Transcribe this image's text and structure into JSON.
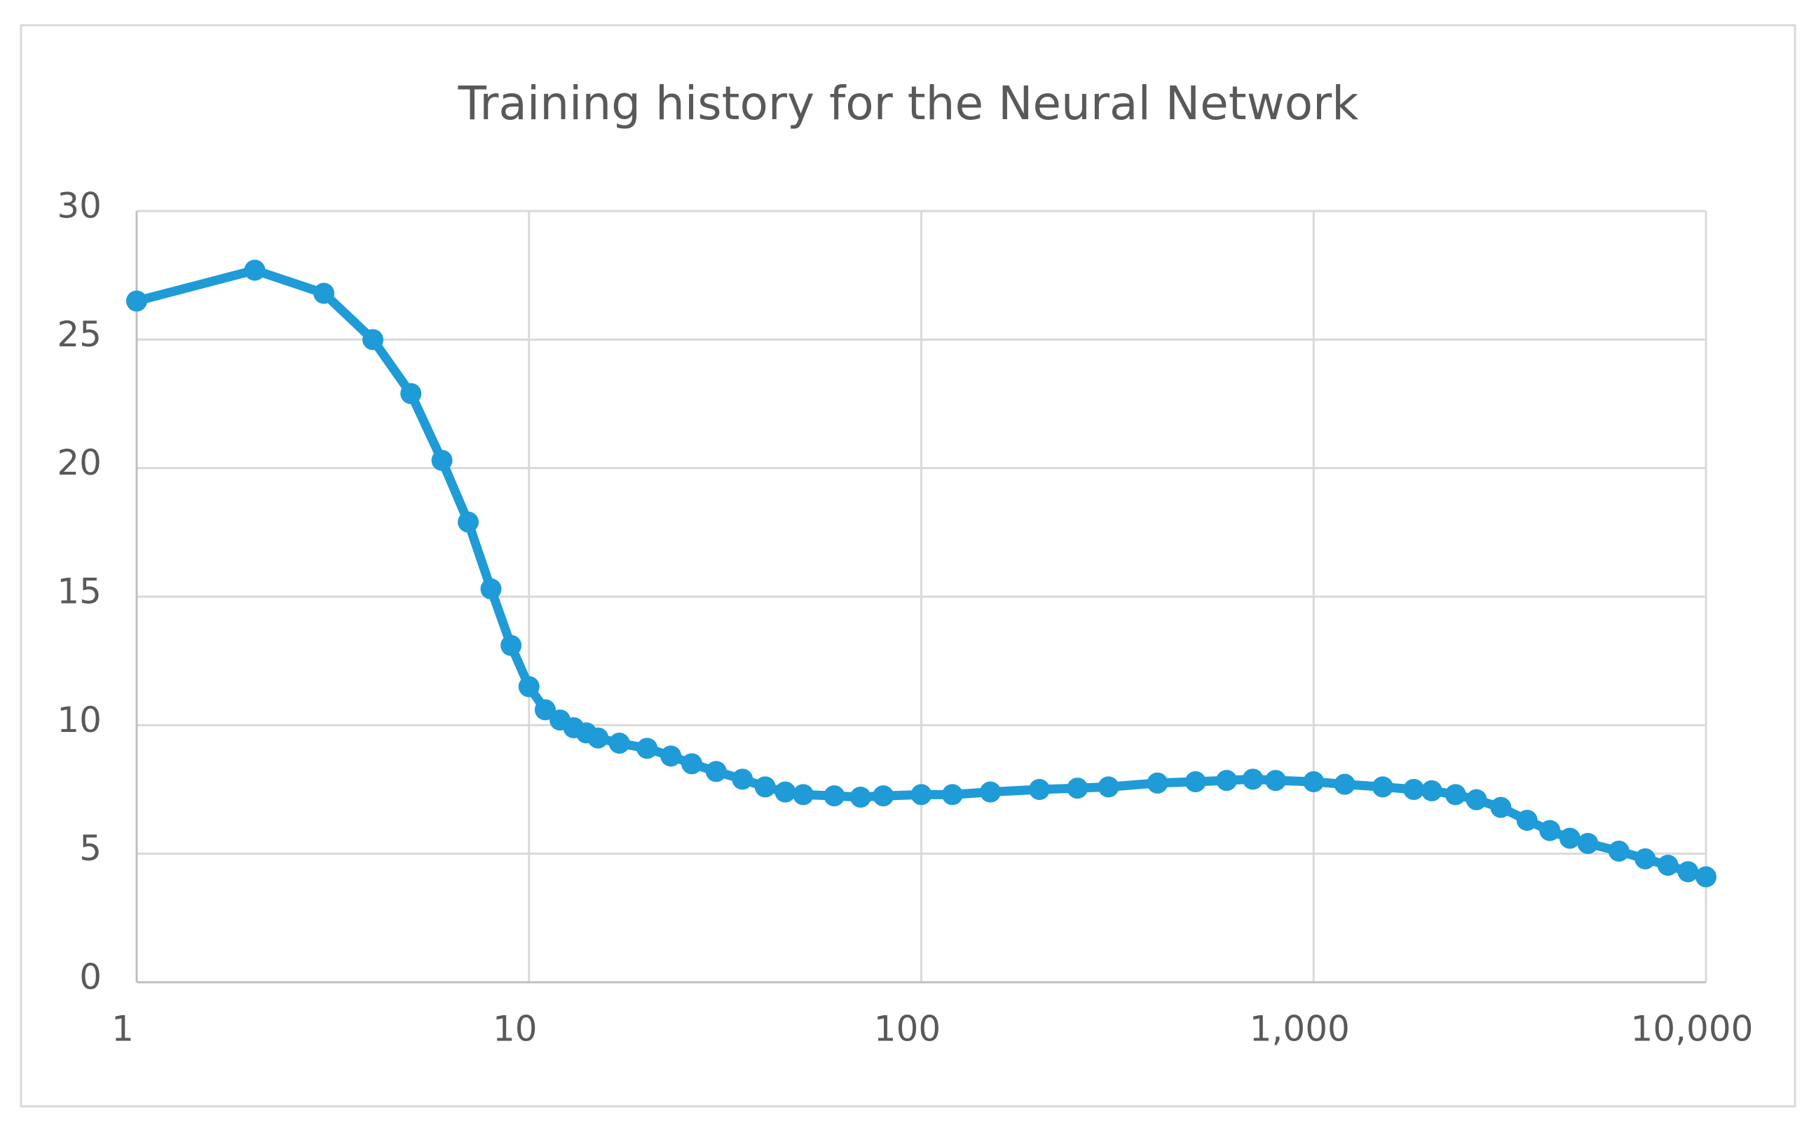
{
  "chart_data": {
    "type": "line",
    "title": "Training history for the Neural Network",
    "x": [
      1,
      2,
      3,
      4,
      5,
      6,
      7,
      8,
      9,
      10,
      11,
      12,
      13,
      14,
      15,
      17,
      20,
      23,
      26,
      30,
      35,
      40,
      45,
      50,
      60,
      70,
      80,
      100,
      120,
      150,
      200,
      250,
      300,
      400,
      500,
      600,
      700,
      800,
      1000,
      1200,
      1500,
      1800,
      2000,
      2300,
      2600,
      3000,
      3500,
      4000,
      4500,
      5000,
      6000,
      7000,
      8000,
      9000,
      10000
    ],
    "values": [
      26.5,
      27.7,
      26.8,
      25.0,
      22.9,
      20.3,
      17.9,
      15.3,
      13.1,
      11.5,
      10.6,
      10.2,
      9.9,
      9.7,
      9.5,
      9.3,
      9.1,
      8.8,
      8.5,
      8.2,
      7.9,
      7.6,
      7.4,
      7.3,
      7.25,
      7.2,
      7.25,
      7.3,
      7.3,
      7.4,
      7.5,
      7.55,
      7.6,
      7.75,
      7.8,
      7.85,
      7.9,
      7.85,
      7.8,
      7.7,
      7.6,
      7.5,
      7.45,
      7.3,
      7.1,
      6.8,
      6.3,
      5.9,
      5.6,
      5.4,
      5.1,
      4.8,
      4.55,
      4.3,
      4.1
    ],
    "color": "#1f9bd7",
    "xscale": "log",
    "xlim": [
      1,
      10000
    ],
    "xticks": [
      1,
      10,
      100,
      {
        "value": 1000,
        "label": "1,000"
      },
      {
        "value": 10000,
        "label": "10,000"
      }
    ],
    "ylim": [
      0,
      30
    ],
    "yticks": [
      0,
      5,
      10,
      15,
      20,
      25,
      30
    ],
    "grid": true
  }
}
